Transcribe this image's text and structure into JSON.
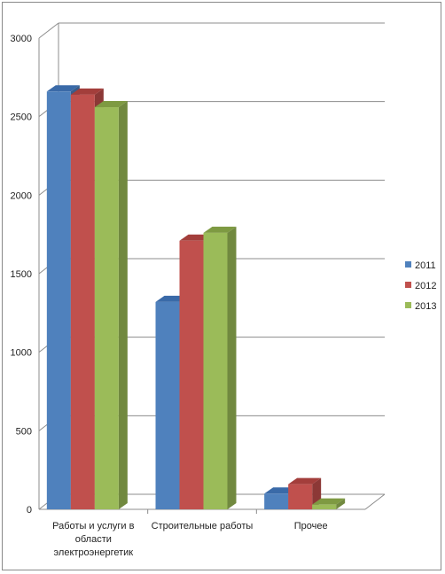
{
  "chart_data": {
    "type": "bar",
    "categories": [
      [
        "Работы и услуги в",
        "области",
        "электроэнергетик"
      ],
      [
        "Строительные работы"
      ],
      [
        "Прочее"
      ]
    ],
    "series": [
      {
        "name": "2011",
        "values": [
          2660,
          1320,
          100
        ]
      },
      {
        "name": "2012",
        "values": [
          2640,
          1710,
          160
        ]
      },
      {
        "name": "2013",
        "values": [
          2560,
          1760,
          30
        ]
      }
    ],
    "ylim": [
      0,
      3000
    ],
    "yticks": [
      0,
      500,
      1000,
      1500,
      2000,
      2500,
      3000
    ],
    "grid": true,
    "legend": "right",
    "colors": {
      "2011": {
        "front": "#4f81bd",
        "top": "#3a6aa8",
        "side": "#385d8a"
      },
      "2012": {
        "front": "#c0504d",
        "top": "#a33e3b",
        "side": "#8c3836"
      },
      "2013": {
        "front": "#9bbb59",
        "top": "#7e9a42",
        "side": "#71893f"
      }
    }
  }
}
